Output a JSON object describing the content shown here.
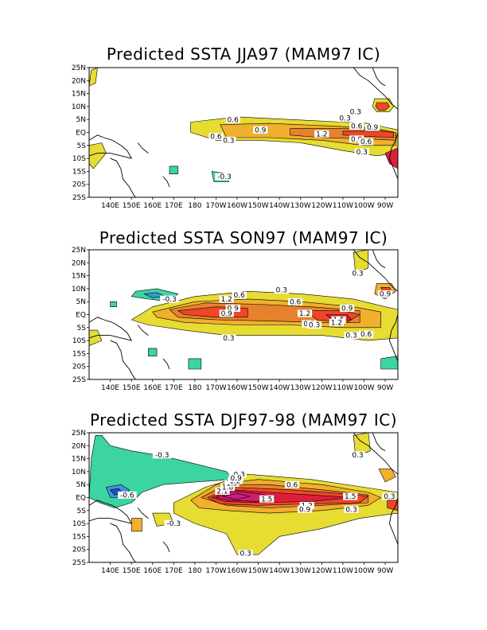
{
  "palette": {
    "ocean": "#ffffff",
    "land_line": "#000000",
    "neg_0_3": "#3cd4a0",
    "neg_0_6": "#3c96dc",
    "neg_0_9": "#2050c0",
    "pos_0_3": "#e6dc32",
    "pos_0_6": "#f0af2d",
    "pos_0_9": "#e6822d",
    "pos_1_2": "#f04628",
    "pos_1_5": "#dc1e3c",
    "pos_1_8": "#d21e6e",
    "pos_2_1": "#c81e8c"
  },
  "axes": {
    "lat_labels": [
      "25N",
      "20N",
      "15N",
      "10N",
      "5N",
      "EQ",
      "5S",
      "10S",
      "15S",
      "20S",
      "25S"
    ],
    "lon_labels": [
      "140E",
      "150E",
      "160E",
      "170E",
      "180",
      "170W",
      "160W",
      "150W",
      "140W",
      "130W",
      "120W",
      "110W",
      "100W",
      "90W"
    ]
  },
  "panels": [
    {
      "title": "Predicted SSTA JJA97 (MAM97 IC)",
      "contour_labels": [
        {
          "text": "0.6",
          "lon": 198,
          "lat": 4.5
        },
        {
          "text": "0.9",
          "lon": 211,
          "lat": 0.5
        },
        {
          "text": "0.6",
          "lon": 190,
          "lat": -2
        },
        {
          "text": "0.3",
          "lon": 196,
          "lat": -3.5
        },
        {
          "text": "1.2",
          "lon": 240,
          "lat": -1
        },
        {
          "text": "0.3",
          "lon": 251,
          "lat": 5
        },
        {
          "text": "0.3",
          "lon": 256,
          "lat": 7.5
        },
        {
          "text": "0.6",
          "lon": 256.5,
          "lat": 2
        },
        {
          "text": "0.9",
          "lon": 264,
          "lat": 1.5
        },
        {
          "text": "0.9",
          "lon": 256.5,
          "lat": -3
        },
        {
          "text": "0.6",
          "lon": 261,
          "lat": -4
        },
        {
          "text": "0.3",
          "lon": 259,
          "lat": -8
        },
        {
          "text": "-0.3",
          "lon": 194,
          "lat": -17.5
        }
      ]
    },
    {
      "title": "Predicted SSTA SON97 (MAM97 IC)",
      "contour_labels": [
        {
          "text": "-0.3",
          "lon": 168,
          "lat": 5.5
        },
        {
          "text": "1.2",
          "lon": 195,
          "lat": 5.5
        },
        {
          "text": "0.6",
          "lon": 201,
          "lat": 7
        },
        {
          "text": "0.9",
          "lon": 198,
          "lat": 2
        },
        {
          "text": "0.9",
          "lon": 195,
          "lat": 0
        },
        {
          "text": "0.3",
          "lon": 221,
          "lat": 9
        },
        {
          "text": "0.6",
          "lon": 227.5,
          "lat": 4.5
        },
        {
          "text": "1.2",
          "lon": 232,
          "lat": 0
        },
        {
          "text": "0.9",
          "lon": 252,
          "lat": 2
        },
        {
          "text": "1.5",
          "lon": 248,
          "lat": -2.5
        },
        {
          "text": "1.2",
          "lon": 247,
          "lat": -3.5
        },
        {
          "text": "0.9",
          "lon": 234,
          "lat": -4
        },
        {
          "text": "0.3",
          "lon": 236.5,
          "lat": -4.5
        },
        {
          "text": "0.3",
          "lon": 254,
          "lat": -8.5
        },
        {
          "text": "0.6",
          "lon": 261,
          "lat": -8
        },
        {
          "text": "0.3",
          "lon": 196,
          "lat": -9.5
        },
        {
          "text": "0.3",
          "lon": 257,
          "lat": 15.5
        },
        {
          "text": "0.9",
          "lon": 270,
          "lat": 7.5
        }
      ]
    },
    {
      "title": "Predicted SSTA DJF97-98 (MAM97 IC)",
      "contour_labels": [
        {
          "text": "-0.3",
          "lon": 164.5,
          "lat": 16
        },
        {
          "text": "-0.6",
          "lon": 148,
          "lat": 0.5
        },
        {
          "text": "0.3",
          "lon": 201,
          "lat": 8.5
        },
        {
          "text": "2.1",
          "lon": 193,
          "lat": 2
        },
        {
          "text": "1.8",
          "lon": 195.5,
          "lat": 3.5
        },
        {
          "text": "1.5",
          "lon": 197.5,
          "lat": 5
        },
        {
          "text": "1.2",
          "lon": 199,
          "lat": 6
        },
        {
          "text": "0.9",
          "lon": 199.5,
          "lat": 7
        },
        {
          "text": "0.6",
          "lon": 226,
          "lat": 4.5
        },
        {
          "text": "1.5",
          "lon": 214,
          "lat": -1
        },
        {
          "text": "1.2",
          "lon": 233,
          "lat": -3.5
        },
        {
          "text": "0.9",
          "lon": 232,
          "lat": -5
        },
        {
          "text": "1.5",
          "lon": 253.5,
          "lat": 0
        },
        {
          "text": "0.3",
          "lon": 254,
          "lat": -5
        },
        {
          "text": "0.3",
          "lon": 272,
          "lat": 0
        },
        {
          "text": "-0.3",
          "lon": 170,
          "lat": -10.5
        },
        {
          "text": "0.3",
          "lon": 204,
          "lat": -22
        },
        {
          "text": "0.3",
          "lon": 257,
          "lat": 16
        }
      ]
    }
  ]
}
